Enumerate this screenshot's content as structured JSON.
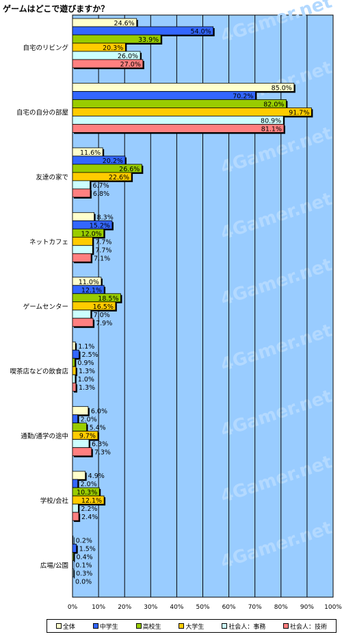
{
  "chart_data": {
    "type": "bar",
    "orientation": "horizontal",
    "title": "ゲームはどこで遊びますか？",
    "categories": [
      "自宅のリビング",
      "自宅の自分の部屋",
      "友達の家で",
      "ネットカフェ",
      "ゲームセンター",
      "喫茶店などの飲食店",
      "通勤/通学の途中",
      "学校/会社",
      "広場/公園"
    ],
    "series": [
      {
        "name": "全体",
        "color": "#ffffcc",
        "values": [
          24.6,
          85.0,
          11.6,
          8.3,
          11.0,
          1.1,
          6.0,
          4.9,
          0.2
        ]
      },
      {
        "name": "中学生",
        "color": "#3366ff",
        "values": [
          54.0,
          70.2,
          20.2,
          15.2,
          12.1,
          2.5,
          2.0,
          2.0,
          1.5
        ]
      },
      {
        "name": "高校生",
        "color": "#99cc00",
        "values": [
          33.9,
          82.0,
          26.6,
          12.0,
          18.5,
          0.9,
          5.4,
          10.3,
          0.4
        ]
      },
      {
        "name": "大学生",
        "color": "#ffcc00",
        "values": [
          20.3,
          91.7,
          22.6,
          7.7,
          16.5,
          1.3,
          9.7,
          12.1,
          0.1
        ]
      },
      {
        "name": "社会人：事務",
        "color": "#ccffff",
        "values": [
          26.0,
          80.9,
          6.7,
          7.7,
          7.0,
          1.0,
          6.3,
          2.2,
          0.3
        ]
      },
      {
        "name": "社会人：技術",
        "color": "#ff8080",
        "values": [
          27.0,
          81.1,
          6.8,
          7.1,
          7.9,
          1.3,
          7.3,
          2.4,
          0.0
        ]
      }
    ],
    "xlim": [
      0,
      100
    ],
    "xticks": [
      "0%",
      "10%",
      "20%",
      "30%",
      "40%",
      "50%",
      "60%",
      "70%",
      "80%",
      "90%",
      "100%"
    ],
    "grid": true,
    "legend_position": "bottom",
    "watermark": "4Gamer.net"
  }
}
